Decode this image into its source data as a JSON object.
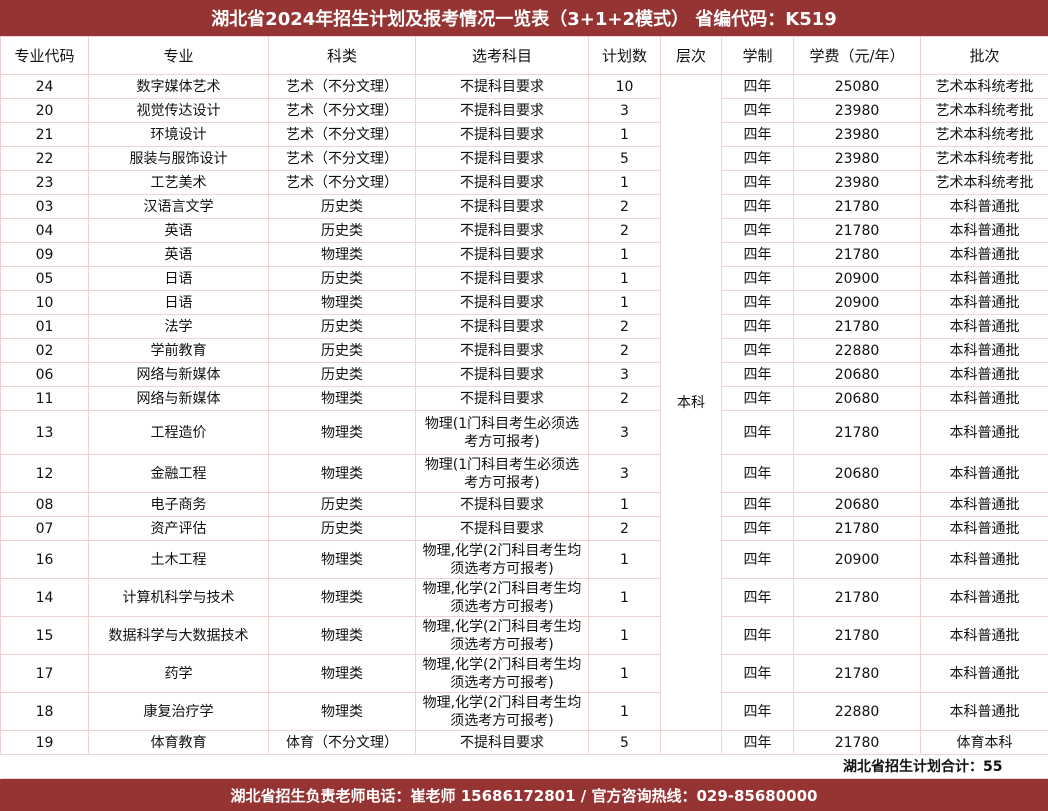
{
  "title": "湖北省2024年招生计划及报考情况一览表（3+1+2模式） 省编代码：K519",
  "headers": [
    "专业代码",
    "专业",
    "科类",
    "选考科目",
    "计划数",
    "层次",
    "学制",
    "学费（元/年）",
    "批次"
  ],
  "level": "本科",
  "rows": [
    [
      "24",
      "数字媒体艺术",
      "艺术（不分文理）",
      "不提科目要求",
      "10",
      "四年",
      "25080",
      "艺术本科统考批"
    ],
    [
      "20",
      "视觉传达设计",
      "艺术（不分文理）",
      "不提科目要求",
      "3",
      "四年",
      "23980",
      "艺术本科统考批"
    ],
    [
      "21",
      "环境设计",
      "艺术（不分文理）",
      "不提科目要求",
      "1",
      "四年",
      "23980",
      "艺术本科统考批"
    ],
    [
      "22",
      "服装与服饰设计",
      "艺术（不分文理）",
      "不提科目要求",
      "5",
      "四年",
      "23980",
      "艺术本科统考批"
    ],
    [
      "23",
      "工艺美术",
      "艺术（不分文理）",
      "不提科目要求",
      "1",
      "四年",
      "23980",
      "艺术本科统考批"
    ],
    [
      "03",
      "汉语言文学",
      "历史类",
      "不提科目要求",
      "2",
      "四年",
      "21780",
      "本科普通批"
    ],
    [
      "04",
      "英语",
      "历史类",
      "不提科目要求",
      "2",
      "四年",
      "21780",
      "本科普通批"
    ],
    [
      "09",
      "英语",
      "物理类",
      "不提科目要求",
      "1",
      "四年",
      "21780",
      "本科普通批"
    ],
    [
      "05",
      "日语",
      "历史类",
      "不提科目要求",
      "1",
      "四年",
      "20900",
      "本科普通批"
    ],
    [
      "10",
      "日语",
      "物理类",
      "不提科目要求",
      "1",
      "四年",
      "20900",
      "本科普通批"
    ],
    [
      "01",
      "法学",
      "历史类",
      "不提科目要求",
      "2",
      "四年",
      "21780",
      "本科普通批"
    ],
    [
      "02",
      "学前教育",
      "历史类",
      "不提科目要求",
      "2",
      "四年",
      "22880",
      "本科普通批"
    ],
    [
      "06",
      "网络与新媒体",
      "历史类",
      "不提科目要求",
      "3",
      "四年",
      "20680",
      "本科普通批"
    ],
    [
      "11",
      "网络与新媒体",
      "物理类",
      "不提科目要求",
      "2",
      "四年",
      "20680",
      "本科普通批"
    ],
    [
      "13",
      "工程造价",
      "物理类",
      "物理(1门科目考生必须选考方可报考)",
      "3",
      "四年",
      "21780",
      "本科普通批"
    ],
    [
      "12",
      "金融工程",
      "物理类",
      "物理(1门科目考生必须选考方可报考)",
      "3",
      "四年",
      "20680",
      "本科普通批"
    ],
    [
      "08",
      "电子商务",
      "历史类",
      "不提科目要求",
      "1",
      "四年",
      "20680",
      "本科普通批"
    ],
    [
      "07",
      "资产评估",
      "历史类",
      "不提科目要求",
      "2",
      "四年",
      "21780",
      "本科普通批"
    ],
    [
      "16",
      "土木工程",
      "物理类",
      "物理,化学(2门科目考生均须选考方可报考)",
      "1",
      "四年",
      "20900",
      "本科普通批"
    ],
    [
      "14",
      "计算机科学与技术",
      "物理类",
      "物理,化学(2门科目考生均须选考方可报考)",
      "1",
      "四年",
      "21780",
      "本科普通批"
    ],
    [
      "15",
      "数据科学与大数据技术",
      "物理类",
      "物理,化学(2门科目考生均须选考方可报考)",
      "1",
      "四年",
      "21780",
      "本科普通批"
    ],
    [
      "17",
      "药学",
      "物理类",
      "物理,化学(2门科目考生均须选考方可报考)",
      "1",
      "四年",
      "21780",
      "本科普通批"
    ],
    [
      "18",
      "康复治疗学",
      "物理类",
      "物理,化学(2门科目考生均须选考方可报考)",
      "1",
      "四年",
      "22880",
      "本科普通批"
    ],
    [
      "19",
      "体育教育",
      "体育（不分文理）",
      "不提科目要求",
      "5",
      "四年",
      "21780",
      "体育本科"
    ]
  ],
  "total": "湖北省招生计划合计：55",
  "footer": "湖北省招生负责老师电话：崔老师 15686172801 / 官方咨询热线：029-85680000",
  "colors": {
    "brand": "#963433",
    "border": "#efd2d2"
  }
}
